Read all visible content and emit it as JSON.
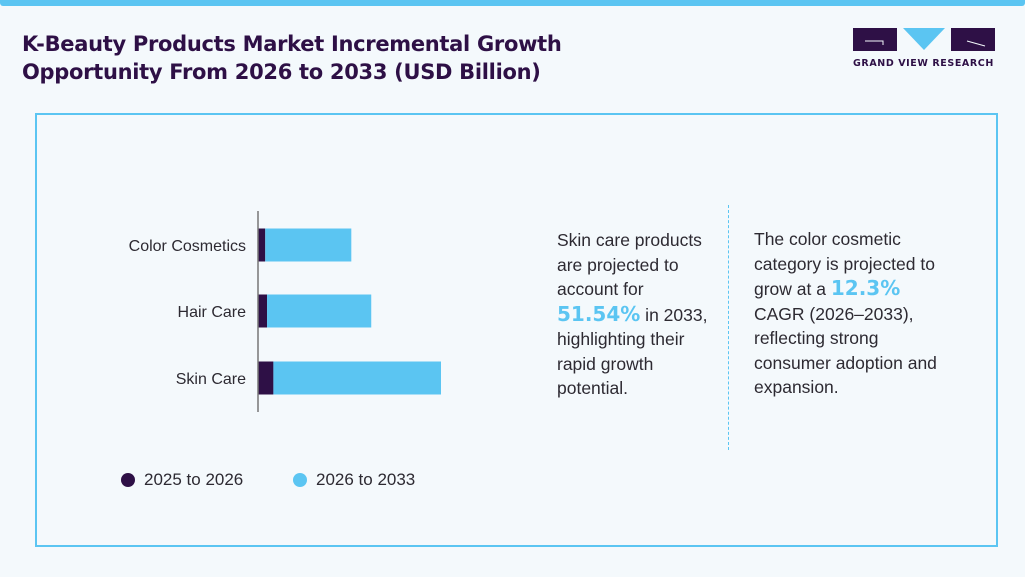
{
  "header": {
    "title_line1": "K-Beauty Products Market Incremental Growth",
    "title_line2": "Opportunity From 2026 to 2033 (USD Billion)"
  },
  "logo": {
    "text": "GRAND VIEW RESEARCH"
  },
  "colors": {
    "dark": "#2e1046",
    "accent": "#5bc5f2",
    "background": "#f4f9fc"
  },
  "chart_data": {
    "type": "bar",
    "orientation": "horizontal",
    "stacked": true,
    "categories": [
      "Color Cosmetics",
      "Hair Care",
      "Skin Care"
    ],
    "series": [
      {
        "name": "2025 to 2026",
        "color": "#2e1046",
        "values": [
          0.8,
          1.0,
          1.7
        ]
      },
      {
        "name": "2026 to 2033",
        "color": "#5bc5f2",
        "values": [
          9.5,
          11.5,
          18.5
        ]
      }
    ],
    "grid": false,
    "legend": "bottom"
  },
  "notes": {
    "left": {
      "pre": "Skin care products are projected to account for ",
      "highlight": "51.54%",
      "post": " in 2033, highlighting their rapid growth potential."
    },
    "right": {
      "pre": "The color cosmetic category is projected to grow at a ",
      "highlight": "12.3%",
      "post": " CAGR (2026–2033), reflecting strong consumer adoption and expansion."
    }
  }
}
